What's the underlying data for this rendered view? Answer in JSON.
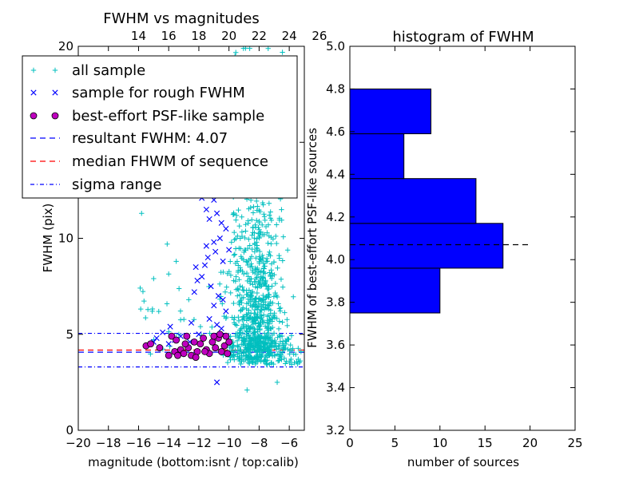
{
  "chart_data": [
    {
      "type": "scatter",
      "title": "FWHM vs magnitudes",
      "xlabel": "magnitude (bottom:isnt / top:calib)",
      "ylabel": "FWHM (pix)",
      "xlim": [
        -20,
        -5
      ],
      "ylim": [
        0,
        20
      ],
      "x_ticks": [
        -20,
        -18,
        -16,
        -14,
        -12,
        -10,
        -8,
        -6
      ],
      "x_tick_labels": [
        "−20",
        "−18",
        "−16",
        "−14",
        "−12",
        "−10",
        "−8",
        "−6"
      ],
      "y_ticks": [
        0,
        5,
        10,
        15,
        20
      ],
      "y_tick_labels": [
        "0",
        "5",
        "10",
        "15",
        "20"
      ],
      "top_x_ticks": [
        14,
        16,
        18,
        20,
        22,
        24,
        26
      ],
      "top_x_tick_labels": [
        "14",
        "16",
        "18",
        "20",
        "22",
        "24",
        "26"
      ],
      "top_axis_offset": 30,
      "legend_position": "top-left",
      "legend": [
        {
          "label": "all sample",
          "marker": "plus",
          "color": "#00bfbf"
        },
        {
          "label": "sample for rough FWHM",
          "marker": "x",
          "color": "#0000ff"
        },
        {
          "label": "best-effort PSF-like sample",
          "marker": "circle",
          "color": "#bf00bf"
        },
        {
          "label": "resultant FWHM: 4.07",
          "marker": "dashed",
          "color": "#0000ff"
        },
        {
          "label": "median FHWM of sequence",
          "marker": "dashed",
          "color": "#ff0000"
        },
        {
          "label": "sigma range",
          "marker": "dashdot",
          "color": "#0000ff"
        }
      ],
      "lines": {
        "resultant_fwhm": 4.07,
        "median_fwhm": 4.18,
        "sigma_range": [
          3.3,
          5.05
        ]
      },
      "series": [
        {
          "name": "sample for rough FWHM",
          "marker": "x",
          "color": "#0000ff",
          "points": [
            [
              -12.3,
              12.5
            ],
            [
              -12.0,
              12.4
            ],
            [
              -11.8,
              12.1
            ],
            [
              -11.9,
              13.0
            ],
            [
              -11.5,
              11.5
            ],
            [
              -11.2,
              12.5
            ],
            [
              -11.0,
              12.0
            ],
            [
              -10.8,
              11.3
            ],
            [
              -11.3,
              11.0
            ],
            [
              -10.5,
              10.8
            ],
            [
              -10.2,
              10.5
            ],
            [
              -10.6,
              10.0
            ],
            [
              -11.0,
              9.8
            ],
            [
              -11.5,
              9.6
            ],
            [
              -10.9,
              9.3
            ],
            [
              -11.4,
              9.0
            ],
            [
              -12.2,
              8.5
            ],
            [
              -11.6,
              8.6
            ],
            [
              -10.4,
              8.8
            ],
            [
              -10.0,
              9.4
            ],
            [
              -11.8,
              8.0
            ],
            [
              -12.1,
              7.8
            ],
            [
              -11.2,
              7.5
            ],
            [
              -10.7,
              7.0
            ],
            [
              -12.3,
              7.2
            ],
            [
              -10.4,
              6.8
            ],
            [
              -11.0,
              6.5
            ],
            [
              -10.2,
              6.2
            ],
            [
              -11.3,
              5.8
            ],
            [
              -10.8,
              5.5
            ],
            [
              -12.0,
              5.0
            ],
            [
              -10.5,
              5.3
            ],
            [
              -13.2,
              4.9
            ],
            [
              -13.6,
              4.7
            ],
            [
              -14.4,
              5.1
            ],
            [
              -14.0,
              4.5
            ],
            [
              -14.8,
              4.8
            ],
            [
              -15.0,
              4.6
            ],
            [
              -12.6,
              4.6
            ],
            [
              -10.8,
              2.5
            ],
            [
              -13.9,
              5.4
            ],
            [
              -12.5,
              5.6
            ]
          ]
        },
        {
          "name": "best-effort PSF-like sample",
          "marker": "circle",
          "color": "#bf00bf",
          "points": [
            [
              -15.5,
              4.4
            ],
            [
              -15.2,
              4.5
            ],
            [
              -14.6,
              4.3
            ],
            [
              -14.0,
              3.9
            ],
            [
              -13.8,
              4.9
            ],
            [
              -13.5,
              4.7
            ],
            [
              -13.2,
              4.2
            ],
            [
              -13.0,
              4.0
            ],
            [
              -12.8,
              4.9
            ],
            [
              -12.7,
              4.3
            ],
            [
              -12.5,
              3.9
            ],
            [
              -12.3,
              4.6
            ],
            [
              -12.1,
              4.1
            ],
            [
              -11.9,
              4.5
            ],
            [
              -11.7,
              4.8
            ],
            [
              -11.5,
              4.2
            ],
            [
              -11.3,
              4.0
            ],
            [
              -11.1,
              4.6
            ],
            [
              -10.9,
              4.3
            ],
            [
              -10.7,
              4.8
            ],
            [
              -10.5,
              4.1
            ],
            [
              -10.3,
              4.4
            ],
            [
              -10.1,
              4.0
            ],
            [
              -10.0,
              4.6
            ],
            [
              -12.9,
              4.5
            ],
            [
              -13.6,
              4.1
            ],
            [
              -11.6,
              4.1
            ],
            [
              -10.6,
              5.0
            ],
            [
              -12.2,
              3.8
            ],
            [
              -13.4,
              3.9
            ],
            [
              -11.0,
              4.9
            ],
            [
              -10.2,
              4.9
            ]
          ]
        }
      ]
    },
    {
      "type": "bar",
      "orientation": "horizontal",
      "title": "histogram of FWHM",
      "xlabel": "number of sources",
      "ylabel": "FWHM of best-effort PSF-like sources",
      "xlim": [
        0,
        25
      ],
      "ylim": [
        3.2,
        5.0
      ],
      "x_ticks": [
        0,
        5,
        10,
        15,
        20,
        25
      ],
      "x_tick_labels": [
        "0",
        "5",
        "10",
        "15",
        "20",
        "25"
      ],
      "y_ticks": [
        3.2,
        3.4,
        3.6,
        3.8,
        4.0,
        4.2,
        4.4,
        4.6,
        4.8,
        5.0
      ],
      "y_tick_labels": [
        "3.2",
        "3.4",
        "3.6",
        "3.8",
        "4.0",
        "4.2",
        "4.4",
        "4.6",
        "4.8",
        "5.0"
      ],
      "bin_edges": [
        3.75,
        3.96,
        4.17,
        4.38,
        4.59,
        4.8
      ],
      "counts": [
        10,
        17,
        14,
        6,
        9
      ],
      "bar_color": "#0000ff",
      "reference_line": {
        "value": 4.07,
        "x_range": [
          0,
          20
        ],
        "style": "dashed",
        "color": "#000000"
      }
    }
  ]
}
